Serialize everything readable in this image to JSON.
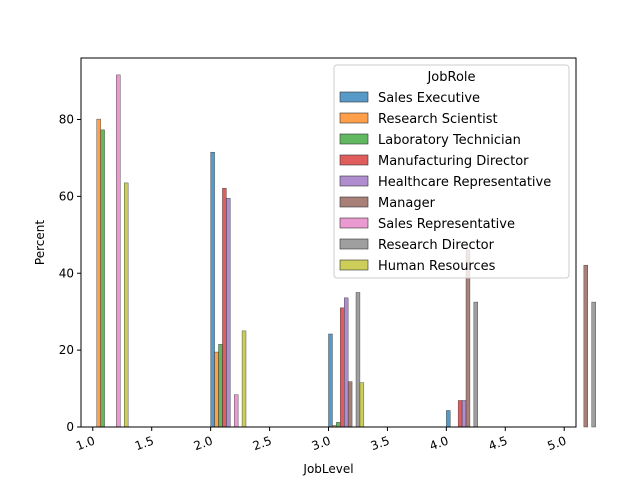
{
  "chart_data": {
    "type": "bar",
    "title": "",
    "xlabel": "JobLevel",
    "ylabel": "Percent",
    "xlim": [
      0.9,
      5.1
    ],
    "ylim": [
      0,
      96
    ],
    "grid": false,
    "x_ticks": [
      "1.0",
      "1.5",
      "2.0",
      "2.5",
      "3.0",
      "3.5",
      "4.0",
      "4.5",
      "5.0"
    ],
    "y_ticks": [
      "0",
      "20",
      "40",
      "60",
      "80"
    ],
    "legend": {
      "title": "JobRole",
      "placement": "top-right"
    },
    "series": [
      {
        "name": "Sales Executive",
        "color": "#1f77b4",
        "values": [
          {
            "x": 1,
            "y": 0
          },
          {
            "x": 2,
            "y": 71.5
          },
          {
            "x": 3,
            "y": 24.2
          },
          {
            "x": 4,
            "y": 4.3
          },
          {
            "x": 5,
            "y": 0
          }
        ]
      },
      {
        "name": "Research Scientist",
        "color": "#ff7f0e",
        "values": [
          {
            "x": 1,
            "y": 80.1
          },
          {
            "x": 2,
            "y": 19.5
          },
          {
            "x": 3,
            "y": 0.4
          },
          {
            "x": 4,
            "y": 0
          },
          {
            "x": 5,
            "y": 0
          }
        ]
      },
      {
        "name": "Laboratory Technician",
        "color": "#2ca02c",
        "values": [
          {
            "x": 1,
            "y": 77.3
          },
          {
            "x": 2,
            "y": 21.5
          },
          {
            "x": 3,
            "y": 1.2
          },
          {
            "x": 4,
            "y": 0
          },
          {
            "x": 5,
            "y": 0
          }
        ]
      },
      {
        "name": "Manufacturing Director",
        "color": "#d62728",
        "values": [
          {
            "x": 1,
            "y": 0
          },
          {
            "x": 2,
            "y": 62.1
          },
          {
            "x": 3,
            "y": 31.0
          },
          {
            "x": 4,
            "y": 6.9
          },
          {
            "x": 5,
            "y": 0
          }
        ]
      },
      {
        "name": "Healthcare Representative",
        "color": "#9467bd",
        "values": [
          {
            "x": 1,
            "y": 0
          },
          {
            "x": 2,
            "y": 59.5
          },
          {
            "x": 3,
            "y": 33.6
          },
          {
            "x": 4,
            "y": 6.9
          },
          {
            "x": 5,
            "y": 0
          }
        ]
      },
      {
        "name": "Manager",
        "color": "#8c564b",
        "values": [
          {
            "x": 1,
            "y": 0
          },
          {
            "x": 2,
            "y": 0
          },
          {
            "x": 3,
            "y": 11.8
          },
          {
            "x": 4,
            "y": 46.1
          },
          {
            "x": 5,
            "y": 42.1
          }
        ]
      },
      {
        "name": "Sales Representative",
        "color": "#e377c2",
        "values": [
          {
            "x": 1,
            "y": 91.6
          },
          {
            "x": 2,
            "y": 8.4
          },
          {
            "x": 3,
            "y": 0
          },
          {
            "x": 4,
            "y": 0
          },
          {
            "x": 5,
            "y": 0
          }
        ]
      },
      {
        "name": "Research Director",
        "color": "#7f7f7f",
        "values": [
          {
            "x": 1,
            "y": 0
          },
          {
            "x": 2,
            "y": 0
          },
          {
            "x": 3,
            "y": 35.0
          },
          {
            "x": 4,
            "y": 32.5
          },
          {
            "x": 5,
            "y": 32.5
          }
        ]
      },
      {
        "name": "Human Resources",
        "color": "#bcbd22",
        "values": [
          {
            "x": 1,
            "y": 63.5
          },
          {
            "x": 2,
            "y": 25.0
          },
          {
            "x": 3,
            "y": 11.5
          },
          {
            "x": 4,
            "y": 0
          },
          {
            "x": 5,
            "y": 0
          }
        ]
      }
    ]
  }
}
